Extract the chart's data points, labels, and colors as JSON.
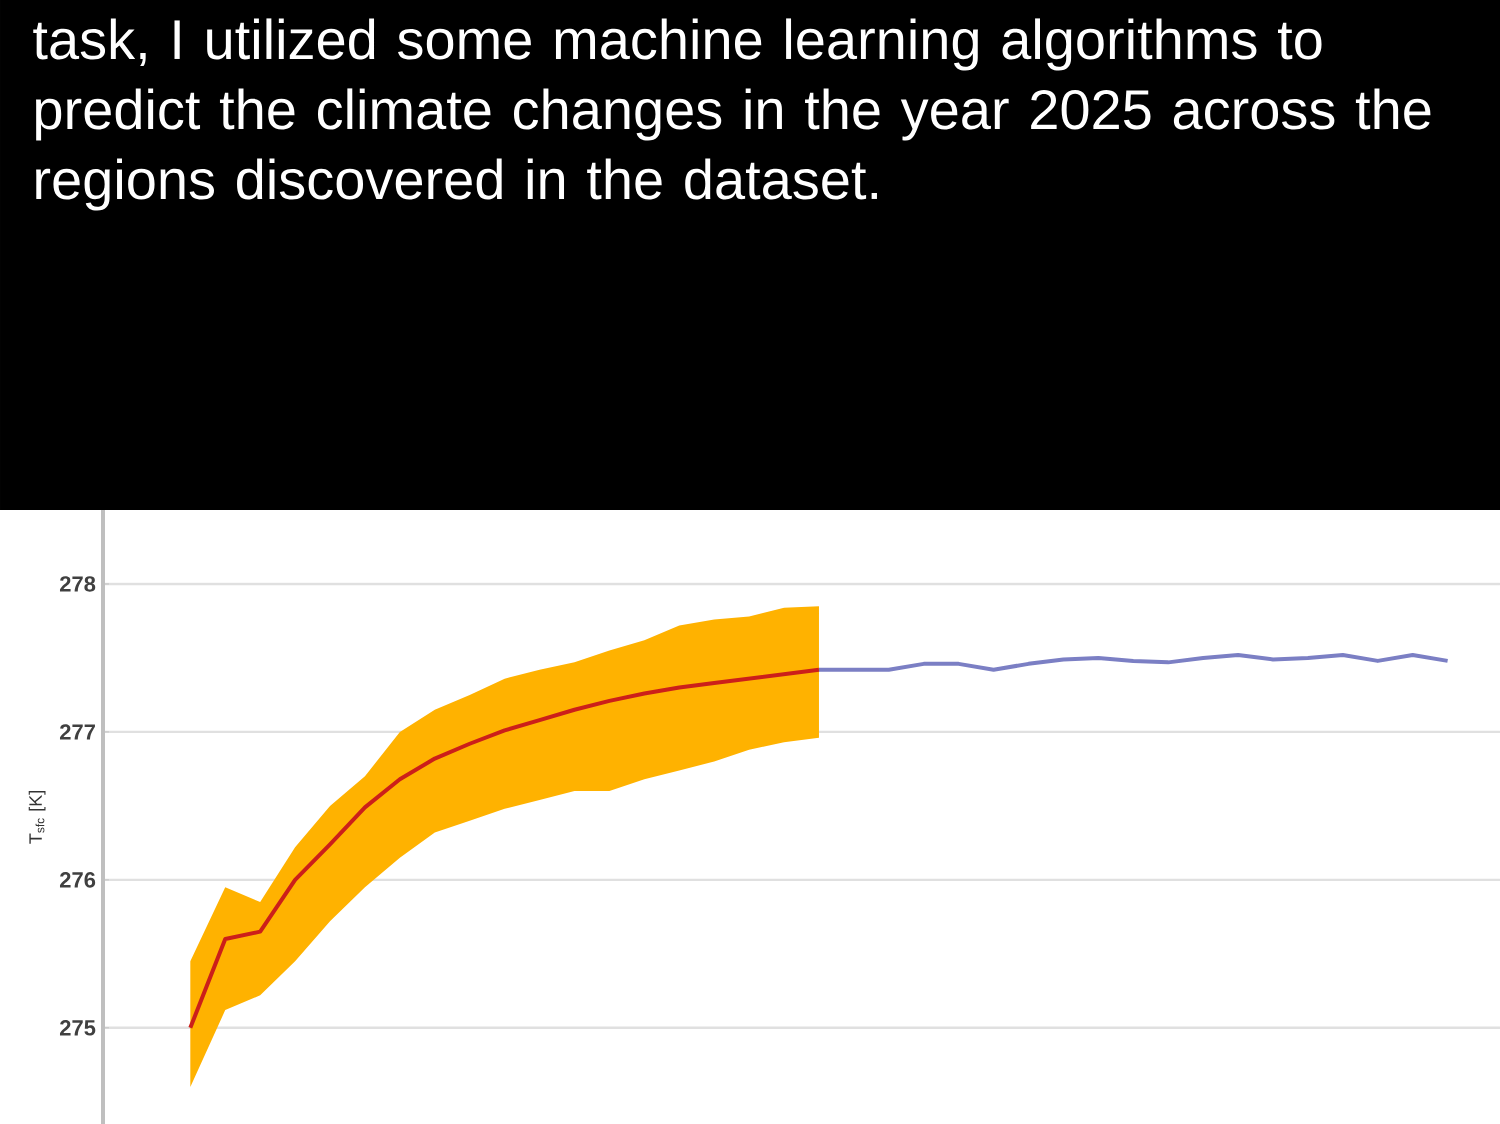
{
  "chart_data": {
    "type": "line",
    "title": "task, I utilized some machine learning algorithms to predict the climate changes in the year 2025 across the regions discovered in the dataset.",
    "ylabel": "T$_{sfc}$ [K]",
    "categories": [
      null,
      null,
      null,
      null,
      null,
      null,
      null,
      null,
      null,
      null,
      null,
      null,
      null,
      null,
      null,
      null,
      null,
      null,
      null,
      null,
      null,
      null,
      null,
      null,
      null,
      null,
      null,
      null,
      null,
      null,
      null,
      null,
      null,
      null,
      null,
      null,
      null,
      null,
      null,
      null
    ],
    "ylim": [
      274.35,
      278.5
    ],
    "yticks": [
      275,
      276,
      277,
      278
    ],
    "grid": true,
    "series": [
      {
        "color": "#cc1f1a",
        "values": [
          null,
          null,
          275.0,
          275.6,
          275.65,
          276.0,
          276.24,
          276.49,
          276.68,
          276.82,
          276.92,
          277.01,
          277.08,
          277.15,
          277.21,
          277.26,
          277.3,
          277.33,
          277.36,
          277.39,
          277.42,
          null,
          null,
          null,
          null,
          null,
          null,
          null,
          null,
          null,
          null,
          null,
          null,
          null,
          null,
          null,
          null,
          null,
          null,
          null
        ],
        "upper": [
          null,
          null,
          275.45,
          275.95,
          275.85,
          276.22,
          276.5,
          276.7,
          277.0,
          277.15,
          277.25,
          277.36,
          277.42,
          277.47,
          277.55,
          277.62,
          277.72,
          277.76,
          277.78,
          277.84,
          277.85,
          null,
          null,
          null,
          null,
          null,
          null,
          null,
          null,
          null,
          null,
          null,
          null,
          null,
          null,
          null,
          null,
          null,
          null,
          null
        ],
        "lower": [
          null,
          null,
          274.6,
          275.12,
          275.22,
          275.45,
          275.72,
          275.95,
          276.15,
          276.32,
          276.4,
          276.48,
          276.54,
          276.6,
          276.6,
          276.68,
          276.74,
          276.8,
          276.88,
          276.93,
          276.96,
          null,
          null,
          null,
          null,
          null,
          null,
          null,
          null,
          null,
          null,
          null,
          null,
          null,
          null,
          null,
          null,
          null,
          null,
          null
        ]
      },
      {
        "color": "#7b7fc4",
        "values": [
          null,
          null,
          null,
          null,
          null,
          null,
          null,
          null,
          null,
          null,
          null,
          null,
          null,
          null,
          null,
          null,
          null,
          null,
          null,
          null,
          277.42,
          277.42,
          277.42,
          277.46,
          277.46,
          277.42,
          277.46,
          277.49,
          277.5,
          277.48,
          277.47,
          277.5,
          277.52,
          277.49,
          277.5,
          277.52,
          277.48,
          277.52,
          277.48,
          null
        ]
      }
    ]
  }
}
